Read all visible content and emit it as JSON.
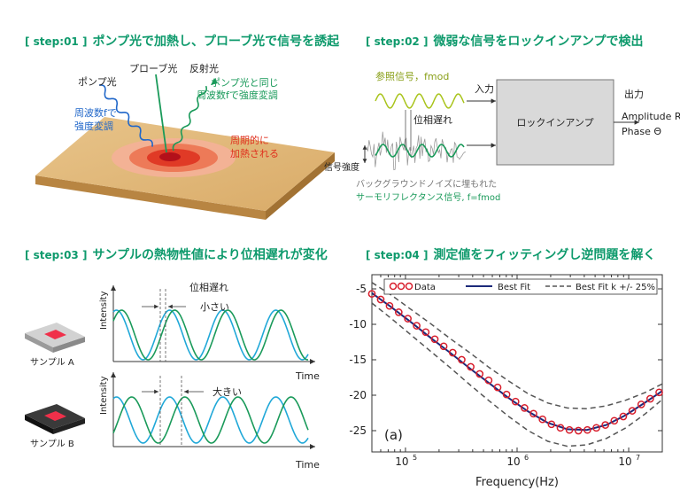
{
  "step1": {
    "tag": "[ step:01 ]",
    "title": "ポンプ光で加熱し、プローブ光で信号を誘起",
    "probe_label": "プローブ光",
    "reflect_label": "反射光",
    "pump_label": "ポンプ光",
    "pump_note_line1": "周波数fで",
    "pump_note_line2": "強度変調",
    "reflect_note_line1": "ポンプ光と同じ",
    "reflect_note_line2": "周波数fで強度変調",
    "heat_note_line1": "周期的に",
    "heat_note_line2": "加熱される"
  },
  "step2": {
    "tag": "[ step:02 ]",
    "title": "微弱な信号をロックインアンプで検出",
    "ref_signal": "参照信号，fmod",
    "input_label": "入力",
    "output_label": "出力",
    "lockin_label": "ロックインアンプ",
    "phase_lag": "位相遅れ",
    "signal_strength": "信号強度",
    "amp_out": "Amplitude R",
    "phase_out": "Phase Θ",
    "noise_caption": "バックグラウンドノイズに埋もれた",
    "tr_caption": "サーモリフレクタンス信号, f=fmod"
  },
  "step3": {
    "tag": "[ step:03 ]",
    "title": "サンプルの熱物性値により位相遅れが変化",
    "phase_lag": "位相遅れ",
    "small": "小さい",
    "large": "大きい",
    "ylabel": "Intensity",
    "xlabel": "Time",
    "sample_a": "サンプル A",
    "sample_b": "サンプル B"
  },
  "step4": {
    "tag": "[ step:04 ]",
    "title": "測定値をフィッティングし逆問題を解く"
  },
  "colors": {
    "accent": "#0e9a6c",
    "signal_green": "#1a9a5a",
    "signal_blue": "#20a8d8",
    "heat_red": "#e0301e",
    "data_red": "#d81e2c",
    "fit_navy": "#1c2a7a"
  },
  "chart_data": {
    "type": "line",
    "xlabel": "Frequency(Hz)",
    "ylabel": "",
    "xscale": "log",
    "xlim": [
      50000,
      20000000
    ],
    "ylim": [
      -28,
      -3
    ],
    "yticks": [
      -5,
      -10,
      -15,
      -20,
      -25
    ],
    "xticks": [
      100000,
      1000000,
      10000000
    ],
    "xtick_labels": [
      "10",
      "10",
      "10"
    ],
    "xtick_exponents": [
      "5",
      "6",
      "7"
    ],
    "annotation": "(a)",
    "legend_position": "top",
    "grid": false,
    "legend": [
      "Data",
      "Best Fit",
      "Best Fit k +/- 25%"
    ],
    "series": [
      {
        "name": "Data",
        "style": "markers",
        "x": [
          50000,
          60000,
          72000,
          87000,
          105000,
          126000,
          152000,
          183000,
          220000,
          265000,
          319000,
          384000,
          462000,
          556000,
          669000,
          805000,
          969000,
          1166000,
          1403000,
          1689000,
          2033000,
          2446000,
          2944000,
          3543000,
          4264000,
          5132000,
          6176000,
          7433000,
          8946000,
          10766000,
          12957000,
          15594000,
          18767000
        ],
        "y": [
          -5.7,
          -6.5,
          -7.4,
          -8.3,
          -9.2,
          -10.2,
          -11.1,
          -12.1,
          -13.1,
          -14.0,
          -15.0,
          -16.0,
          -17.0,
          -17.9,
          -18.9,
          -19.9,
          -20.9,
          -21.8,
          -22.6,
          -23.4,
          -24.1,
          -24.6,
          -24.9,
          -25.0,
          -24.9,
          -24.6,
          -24.2,
          -23.6,
          -23.0,
          -22.2,
          -21.3,
          -20.5,
          -19.6
        ]
      },
      {
        "name": "Best Fit",
        "style": "solid",
        "x": [
          50000,
          75000,
          112000,
          168000,
          251000,
          376000,
          562000,
          841000,
          1259000,
          1884000,
          2818000,
          4217000,
          6310000,
          9441000,
          14125000,
          20000000
        ],
        "y": [
          -5.6,
          -7.6,
          -9.7,
          -11.9,
          -14.0,
          -16.2,
          -18.3,
          -20.4,
          -22.3,
          -23.9,
          -24.8,
          -24.9,
          -24.2,
          -22.8,
          -21.0,
          -19.4
        ]
      },
      {
        "name": "Best Fit k +25%",
        "style": "dashed",
        "x": [
          50000,
          75000,
          112000,
          168000,
          251000,
          376000,
          562000,
          841000,
          1259000,
          1884000,
          2818000,
          4217000,
          6310000,
          9441000,
          14125000,
          20000000
        ],
        "y": [
          -4.1,
          -5.9,
          -7.9,
          -9.9,
          -12.0,
          -14.0,
          -16.1,
          -18.0,
          -19.8,
          -21.1,
          -21.8,
          -21.9,
          -21.5,
          -20.7,
          -19.6,
          -18.4
        ]
      },
      {
        "name": "Best Fit k -25%",
        "style": "dashed",
        "x": [
          50000,
          75000,
          112000,
          168000,
          251000,
          376000,
          562000,
          841000,
          1259000,
          1884000,
          2818000,
          4217000,
          6310000,
          9441000,
          14125000,
          20000000
        ],
        "y": [
          -7.0,
          -9.2,
          -11.5,
          -13.8,
          -16.1,
          -18.5,
          -20.8,
          -23.0,
          -25.0,
          -26.5,
          -27.2,
          -27.0,
          -26.1,
          -24.6,
          -22.6,
          -20.6
        ]
      }
    ]
  }
}
